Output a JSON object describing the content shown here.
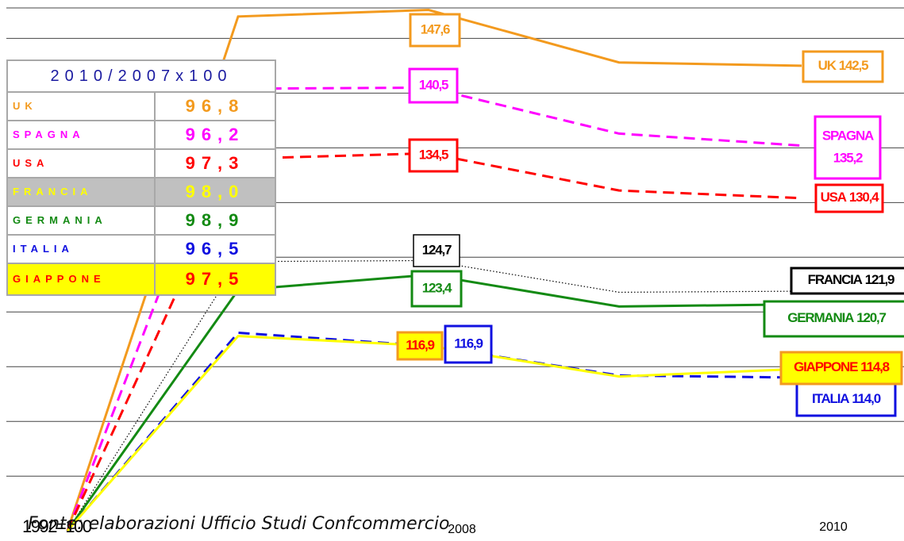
{
  "chart_data": {
    "type": "line",
    "categories": [
      "1992=100",
      null,
      "2008",
      null,
      "2010"
    ],
    "ylim": [
      104,
      148
    ],
    "yticks": [
      105,
      110,
      115,
      120,
      125,
      130,
      135,
      140,
      145
    ],
    "grid": true,
    "series": [
      {
        "name": "UK",
        "color": "#f39a1e",
        "style": "solid",
        "values": [
          100,
          147.0,
          147.6,
          142.8,
          142.5
        ],
        "value_labels": [
          null,
          null,
          "147,6",
          null,
          "142,5"
        ]
      },
      {
        "name": "SPAGNA",
        "color": "#ff00ff",
        "style": "dashed",
        "values": [
          100,
          140.4,
          140.5,
          136.3,
          135.2
        ],
        "value_labels": [
          null,
          null,
          "140,5",
          null,
          "135,2"
        ]
      },
      {
        "name": "USA",
        "color": "#ff0000",
        "style": "dashed",
        "values": [
          100,
          134.0,
          134.5,
          131.1,
          130.4
        ],
        "value_labels": [
          null,
          null,
          "134,5",
          null,
          "130,4"
        ]
      },
      {
        "name": "FRANCIA",
        "color": "#000000",
        "style": "dotted",
        "values": [
          100,
          124.6,
          124.7,
          121.8,
          121.9
        ],
        "value_labels": [
          null,
          null,
          "124,7",
          null,
          "121,9"
        ]
      },
      {
        "name": "GERMANIA",
        "color": "#138a13",
        "style": "solid",
        "values": [
          100,
          122.0,
          123.4,
          120.5,
          120.7
        ],
        "value_labels": [
          null,
          null,
          "123,4",
          null,
          "120,7"
        ]
      },
      {
        "name": "ITALIA",
        "color": "#1010e0",
        "style": "dashed",
        "values": [
          100,
          118.1,
          116.9,
          114.2,
          114.0
        ],
        "value_labels": [
          null,
          null,
          "116,9",
          null,
          "114,0"
        ]
      },
      {
        "name": "GIAPPONE",
        "color": "#ffff00",
        "style": "solid",
        "values": [
          100,
          117.8,
          116.9,
          114.1,
          114.8
        ],
        "value_labels": [
          null,
          null,
          "116,9",
          null,
          "114,8"
        ]
      }
    ]
  },
  "table": {
    "title": "2010/2007x100",
    "rows": [
      {
        "label": "UK",
        "value": 96.8,
        "value_label": "96,8"
      },
      {
        "label": "SPAGNA",
        "value": 96.2,
        "value_label": "96,2"
      },
      {
        "label": "USA",
        "value": 97.3,
        "value_label": "97,3"
      },
      {
        "label": "FRANCIA",
        "value": 98.0,
        "value_label": "98,0"
      },
      {
        "label": "GERMANIA",
        "value": 98.9,
        "value_label": "98,9"
      },
      {
        "label": "ITALIA",
        "value": 96.5,
        "value_label": "96,5"
      },
      {
        "label": "GIAPPONE",
        "value": 97.5,
        "value_label": "97,5"
      }
    ]
  },
  "source": "Fonte: elaborazioni Ufficio Studi Confcommercio"
}
